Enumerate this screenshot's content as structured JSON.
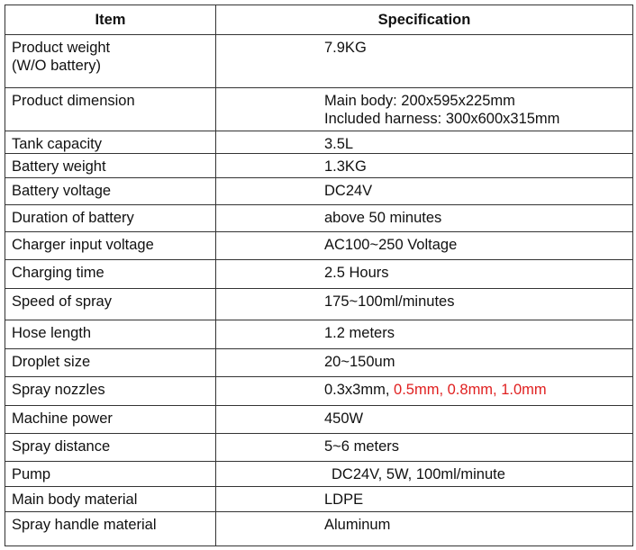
{
  "headers": {
    "item": "Item",
    "spec": "Specification"
  },
  "rows": [
    {
      "item": "Product weight",
      "item2": " (W/O battery)",
      "spec": "7.9KG"
    },
    {
      "item": "Product dimension",
      "spec": "Main body: 200x595x225mm",
      "spec2": "Included harness: 300x600x315mm"
    },
    {
      "item": "Tank capacity",
      "spec": "3.5L"
    },
    {
      "item": "Battery weight",
      "spec": "1.3KG"
    },
    {
      "item": "Battery voltage",
      "spec": "DC24V"
    },
    {
      "item": "Duration of battery",
      "spec": "above 50 minutes"
    },
    {
      "item": "Charger input voltage",
      "spec": "AC100~250 Voltage"
    },
    {
      "item": "Charging time",
      "spec": "2.5 Hours"
    },
    {
      "item": "Speed of spray",
      "spec": "175~100ml/minutes"
    },
    {
      "item": "Hose length",
      "spec": "1.2 meters"
    },
    {
      "item": "Droplet size",
      "spec": "20~150um"
    },
    {
      "item": "Spray nozzles",
      "spec": "0.3x3mm, ",
      "spec_red": "0.5mm, 0.8mm, 1.0mm"
    },
    {
      "item": "Machine power",
      "spec": "450W"
    },
    {
      "item": "Spray distance",
      "spec": "5~6 meters"
    },
    {
      "item": "Pump",
      "spec": "DC24V, 5W, 100ml/minute"
    },
    {
      "item": "Main body material",
      "spec": "LDPE"
    },
    {
      "item": "Spray handle material",
      "spec": "Aluminum"
    }
  ],
  "colors": {
    "highlight": "#e02020"
  }
}
